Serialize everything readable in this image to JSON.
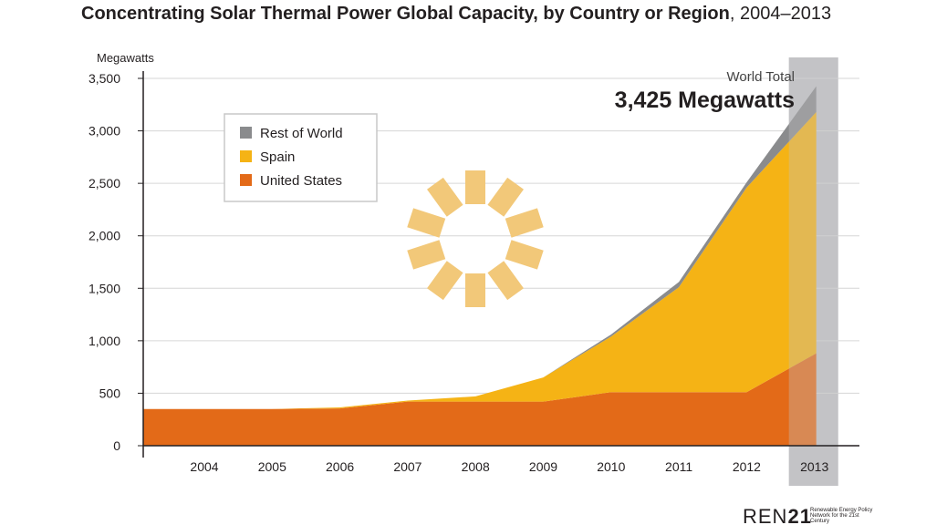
{
  "title": {
    "main": "Concentrating Solar Thermal Power Global Capacity, by Country or Region",
    "years": ", 2004–2013"
  },
  "logo": {
    "mark_light": "REN",
    "mark_bold": "21",
    "tagline": "Renewable Energy Policy Network for the 21st Century"
  },
  "colors": {
    "rest_of_world": "#8a8b8d",
    "spain": "#f5b315",
    "united_states": "#e36a18",
    "highlight": "#c3c4c6",
    "gridline": "#d6d6d6",
    "sun": "#f2c879"
  },
  "chart_data": {
    "type": "area",
    "stacked": true,
    "title": "Concentrating Solar Thermal Power Global Capacity, by Country or Region, 2004–2013",
    "ylabel": "Megawatts",
    "xlabel": "",
    "ylim": [
      0,
      3500
    ],
    "yticks": [
      0,
      500,
      1000,
      1500,
      2000,
      2500,
      3000,
      3500
    ],
    "ytick_labels": [
      "0",
      "500",
      "1,000",
      "1,500",
      "2,000",
      "2,500",
      "3,000",
      "3,500"
    ],
    "categories": [
      "2004",
      "2005",
      "2006",
      "2007",
      "2008",
      "2009",
      "2010",
      "2011",
      "2012",
      "2013"
    ],
    "grid": true,
    "legend_position": "top-left",
    "series": [
      {
        "name": "United States",
        "color": "#e36a18",
        "values": [
          350,
          350,
          355,
          420,
          420,
          420,
          510,
          510,
          510,
          880
        ]
      },
      {
        "name": "Spain",
        "color": "#f5b315",
        "values": [
          0,
          0,
          10,
          10,
          50,
          230,
          530,
          1000,
          1950,
          2300
        ]
      },
      {
        "name": "Rest of World",
        "color": "#8a8b8d",
        "values": [
          0,
          0,
          0,
          0,
          0,
          0,
          20,
          50,
          50,
          245
        ]
      }
    ],
    "annotations": [
      {
        "label": "World Total",
        "value": "3,425 Megawatts",
        "category": "2013"
      }
    ],
    "highlight_category": "2013"
  }
}
